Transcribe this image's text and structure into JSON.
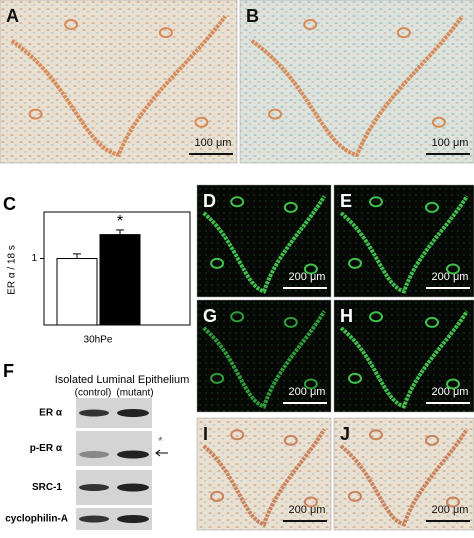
{
  "panels": [
    {
      "label": "A",
      "scale_bar": "100 μm"
    },
    {
      "label": "B",
      "scale_bar": "100 μm"
    },
    {
      "label": "D",
      "scale_bar": "200 μm"
    },
    {
      "label": "E",
      "scale_bar": "200 μm"
    },
    {
      "label": "G",
      "scale_bar": "200 μm"
    },
    {
      "label": "H",
      "scale_bar": "200 μm"
    },
    {
      "label": "I",
      "scale_bar": "200 μm"
    },
    {
      "label": "J",
      "scale_bar": "200 μm"
    }
  ],
  "chart_data": {
    "type": "bar",
    "panel_label": "C",
    "ylabel": "ER α / 18 s",
    "categories": [
      "30hPe"
    ],
    "series": [
      {
        "color": "#ffffff",
        "values": [
          1.0
        ],
        "errors": [
          0.07
        ]
      },
      {
        "color": "#000000",
        "values": [
          1.36
        ],
        "errors": [
          0.07
        ]
      }
    ],
    "annotation": "*",
    "ylim": [
      0,
      1.7
    ],
    "yticks": [
      1
    ]
  },
  "blot": {
    "label": "F",
    "title": "Isolated Luminal Epithelium",
    "lanes": [
      "(control)",
      "(mutant)"
    ],
    "rows": [
      "ER α",
      "p-ER α",
      "SRC-1",
      "cyclophilin-A"
    ],
    "marker": "*"
  }
}
